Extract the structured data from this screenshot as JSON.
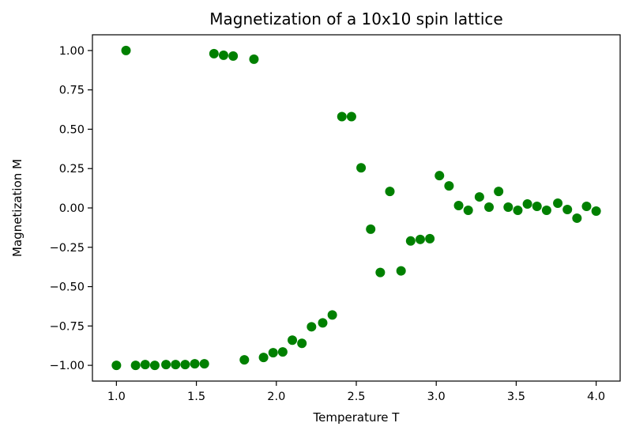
{
  "chart_data": {
    "type": "scatter",
    "title": "Magnetization of a 10x10 spin lattice",
    "xlabel": "Temperature T",
    "ylabel": "Magnetization M",
    "xlim": [
      0.85,
      4.15
    ],
    "ylim": [
      -1.1,
      1.1
    ],
    "xticks": [
      "1.0",
      "1.5",
      "2.0",
      "2.5",
      "3.0",
      "3.5",
      "4.0"
    ],
    "yticks": [
      "1.00",
      "0.75",
      "0.50",
      "0.25",
      "0.00",
      "−0.25",
      "−0.50",
      "−0.75",
      "−1.00"
    ],
    "grid": false,
    "marker_color": "#008000",
    "points": [
      {
        "x": 1.0,
        "y": -1.0
      },
      {
        "x": 1.06,
        "y": 1.0
      },
      {
        "x": 1.12,
        "y": -1.0
      },
      {
        "x": 1.18,
        "y": -0.995
      },
      {
        "x": 1.24,
        "y": -1.0
      },
      {
        "x": 1.31,
        "y": -0.995
      },
      {
        "x": 1.37,
        "y": -0.995
      },
      {
        "x": 1.43,
        "y": -0.995
      },
      {
        "x": 1.49,
        "y": -0.99
      },
      {
        "x": 1.55,
        "y": -0.99
      },
      {
        "x": 1.61,
        "y": 0.98
      },
      {
        "x": 1.67,
        "y": 0.97
      },
      {
        "x": 1.73,
        "y": 0.965
      },
      {
        "x": 1.8,
        "y": -0.965
      },
      {
        "x": 1.86,
        "y": 0.945
      },
      {
        "x": 1.92,
        "y": -0.95
      },
      {
        "x": 1.98,
        "y": -0.92
      },
      {
        "x": 2.04,
        "y": -0.915
      },
      {
        "x": 2.1,
        "y": -0.84
      },
      {
        "x": 2.16,
        "y": -0.86
      },
      {
        "x": 2.22,
        "y": -0.755
      },
      {
        "x": 2.29,
        "y": -0.73
      },
      {
        "x": 2.35,
        "y": -0.68
      },
      {
        "x": 2.41,
        "y": 0.58
      },
      {
        "x": 2.47,
        "y": 0.58
      },
      {
        "x": 2.53,
        "y": 0.255
      },
      {
        "x": 2.59,
        "y": -0.135
      },
      {
        "x": 2.65,
        "y": -0.41
      },
      {
        "x": 2.71,
        "y": 0.105
      },
      {
        "x": 2.78,
        "y": -0.4
      },
      {
        "x": 2.84,
        "y": -0.21
      },
      {
        "x": 2.9,
        "y": -0.2
      },
      {
        "x": 2.96,
        "y": -0.195
      },
      {
        "x": 3.02,
        "y": 0.205
      },
      {
        "x": 3.08,
        "y": 0.14
      },
      {
        "x": 3.14,
        "y": 0.015
      },
      {
        "x": 3.2,
        "y": -0.015
      },
      {
        "x": 3.27,
        "y": 0.07
      },
      {
        "x": 3.33,
        "y": 0.005
      },
      {
        "x": 3.39,
        "y": 0.105
      },
      {
        "x": 3.45,
        "y": 0.005
      },
      {
        "x": 3.51,
        "y": -0.015
      },
      {
        "x": 3.57,
        "y": 0.025
      },
      {
        "x": 3.63,
        "y": 0.01
      },
      {
        "x": 3.69,
        "y": -0.015
      },
      {
        "x": 3.76,
        "y": 0.03
      },
      {
        "x": 3.82,
        "y": -0.01
      },
      {
        "x": 3.88,
        "y": -0.065
      },
      {
        "x": 3.94,
        "y": 0.01
      },
      {
        "x": 4.0,
        "y": -0.02
      }
    ]
  }
}
